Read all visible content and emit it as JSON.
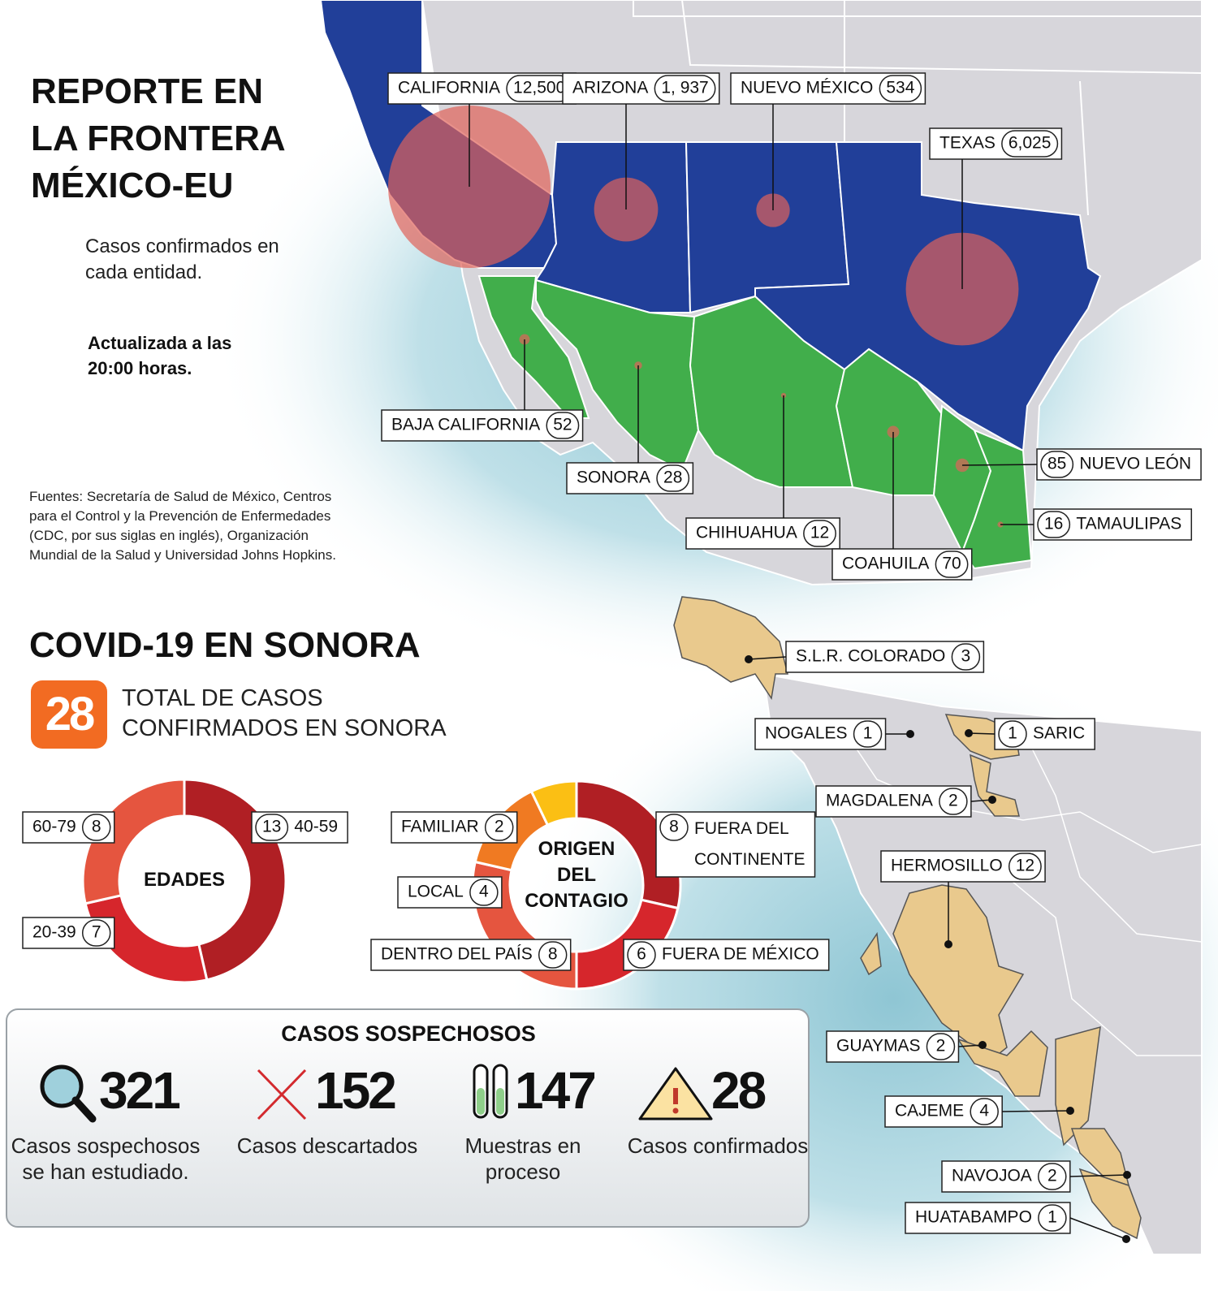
{
  "header": {
    "title": "REPORTE EN LA FRONTERA MÉXICO-EU",
    "subtitle": "Casos confirmados en cada entidad.",
    "updated": "Actualizada a las 20:00 horas.",
    "sources": "Fuentes: Secretaría de Salud de México, Centros para el Control y la Prevención de Enfermedades (CDC, por sus siglas en inglés), Organización Mundial de la Salud y Universidad Johns Hopkins."
  },
  "border_map": {
    "bubble_color": "#e0635a",
    "entities": [
      {
        "name": "CALIFORNIA",
        "value": 12500,
        "value_label": "12,500"
      },
      {
        "name": "ARIZONA",
        "value": 1937,
        "value_label": "1, 937"
      },
      {
        "name": "NUEVO MÉXICO",
        "value": 534
      },
      {
        "name": "TEXAS",
        "value": 6025,
        "value_label": "6,025"
      },
      {
        "name": "BAJA CALIFORNIA",
        "value": 52
      },
      {
        "name": "SONORA",
        "value": 28
      },
      {
        "name": "CHIHUAHUA",
        "value": 12
      },
      {
        "name": "COAHUILA",
        "value": 70
      },
      {
        "name": "NUEVO LEÓN",
        "value": 85
      },
      {
        "name": "TAMAULIPAS",
        "value": 16
      }
    ]
  },
  "sonora": {
    "title": "COVID-19 EN SONORA",
    "total": 28,
    "total_label": "TOTAL DE CASOS CONFIRMADOS EN SONORA",
    "ages": {
      "title": "EDADES",
      "segments": [
        {
          "name": "40-59",
          "value": 13,
          "color": "#b01f24"
        },
        {
          "name": "20-39",
          "value": 7,
          "color": "#d6262c"
        },
        {
          "name": "60-79",
          "value": 8,
          "color": "#e5553f"
        }
      ]
    },
    "origin": {
      "title": "ORIGEN DEL CONTAGIO",
      "segments": [
        {
          "name": "FUERA DEL CONTINENTE",
          "value": 8,
          "color": "#b01f24"
        },
        {
          "name": "FUERA DE MÉXICO",
          "value": 6,
          "color": "#d6262c"
        },
        {
          "name": "DENTRO DEL PAÍS",
          "value": 8,
          "color": "#e5553f"
        },
        {
          "name": "LOCAL",
          "value": 4,
          "color": "#f07a22"
        },
        {
          "name": "FAMILIAR",
          "value": 2,
          "color": "#fbbf14"
        }
      ]
    },
    "municipalities": [
      {
        "name": "S.L.R. COLORADO",
        "value": 3
      },
      {
        "name": "NOGALES",
        "value": 1
      },
      {
        "name": "SARIC",
        "value": 1
      },
      {
        "name": "MAGDALENA",
        "value": 2
      },
      {
        "name": "HERMOSILLO",
        "value": 12
      },
      {
        "name": "GUAYMAS",
        "value": 2
      },
      {
        "name": "CAJEME",
        "value": 4
      },
      {
        "name": "NAVOJOA",
        "value": 2
      },
      {
        "name": "HUATABAMPO",
        "value": 1
      }
    ]
  },
  "suspects": {
    "title": "CASOS SOSPECHOSOS",
    "items": [
      {
        "value": 321,
        "label": "Casos sospechosos se han estudiado."
      },
      {
        "value": 152,
        "label": "Casos descartados"
      },
      {
        "value": 147,
        "label": "Muestras en proceso"
      },
      {
        "value": 28,
        "label": "Casos confirmados"
      }
    ]
  }
}
